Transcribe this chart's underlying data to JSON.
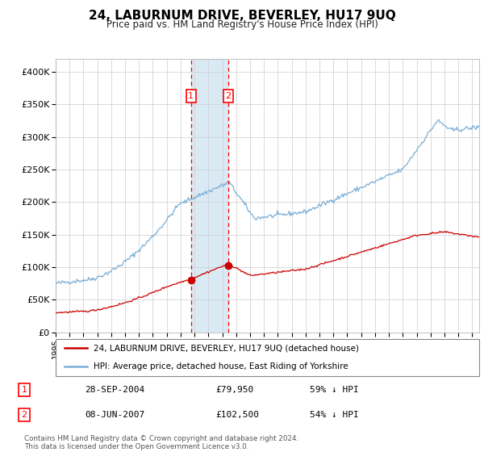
{
  "title": "24, LABURNUM DRIVE, BEVERLEY, HU17 9UQ",
  "subtitle": "Price paid vs. HM Land Registry's House Price Index (HPI)",
  "legend_line1": "24, LABURNUM DRIVE, BEVERLEY, HU17 9UQ (detached house)",
  "legend_line2": "HPI: Average price, detached house, East Riding of Yorkshire",
  "sale1_date": "28-SEP-2004",
  "sale1_price": "£79,950",
  "sale1_hpi": "59% ↓ HPI",
  "sale1_year": 2004.75,
  "sale1_value": 79950,
  "sale2_date": "08-JUN-2007",
  "sale2_price": "£102,500",
  "sale2_hpi": "54% ↓ HPI",
  "sale2_year": 2007.44,
  "sale2_value": 102500,
  "red_line_color": "#cc0000",
  "blue_line_color": "#7aaed6",
  "shade_color": "#daeaf5",
  "grid_color": "#cccccc",
  "footnote": "Contains HM Land Registry data © Crown copyright and database right 2024.\nThis data is licensed under the Open Government Licence v3.0.",
  "ylim": [
    0,
    420000
  ],
  "xlim_start": 1995.0,
  "xlim_end": 2025.5
}
